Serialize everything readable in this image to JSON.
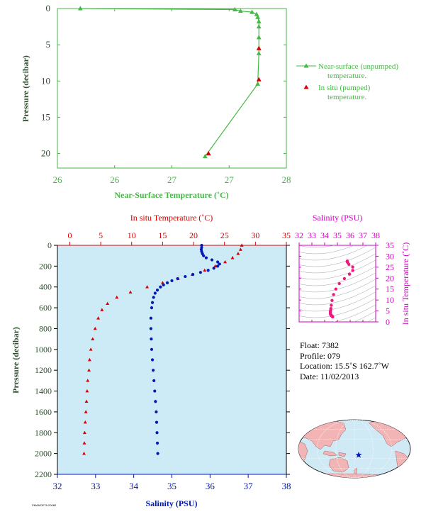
{
  "colors": {
    "green": "#46b846",
    "red": "#d80000",
    "blue": "#0018b8",
    "magenta": "#d000c0",
    "pink": "#f01880",
    "dark_green": "#2e4f2e",
    "plot_bg": "#cdebf6",
    "land": "#f2b4b4",
    "ocean": "#cfe9f5"
  },
  "chart_data": [
    {
      "id": "near-surface",
      "type": "line",
      "xlabel": "Near-Surface Temperature (˚C)",
      "ylabel": "Pressure (decibar)",
      "xlim": [
        26,
        28
      ],
      "ylim": [
        0,
        22
      ],
      "y_reversed": true,
      "x_ticks": [
        "26",
        "26",
        "27",
        "27",
        "28"
      ],
      "x_tick_values": [
        26,
        26.5,
        27,
        27.5,
        28
      ],
      "y_ticks": [
        "0",
        "5",
        "10",
        "15",
        "20"
      ],
      "y_tick_values": [
        0,
        5,
        10,
        15,
        20
      ],
      "series": [
        {
          "name": "Near-surface (unpumped) temperature.",
          "legend_lines": [
            "Near-surface (unpumped)",
            "temperature."
          ],
          "marker": "triangle",
          "x": [
            26.2,
            27.55,
            27.6,
            27.7,
            27.74,
            27.75,
            27.76,
            27.76,
            27.76,
            27.76,
            27.76,
            27.75,
            27.29
          ],
          "y": [
            0.0,
            0.15,
            0.35,
            0.5,
            0.8,
            1.2,
            1.8,
            2.5,
            4.0,
            5.5,
            6.2,
            10.4,
            20.4
          ]
        },
        {
          "name": "In situ (pumped) temperature.",
          "legend_lines": [
            "In situ (pumped)",
            "temperature."
          ],
          "marker": "triangle",
          "x": [
            27.76,
            27.76,
            27.32
          ],
          "y": [
            5.5,
            9.8,
            20.0
          ]
        }
      ]
    },
    {
      "id": "profile",
      "type": "scatter",
      "top_axis_label": "In situ Temperature (˚C)",
      "bottom_axis_label": "Salinity (PSU)",
      "ylabel": "Pressure (decibar)",
      "temp_lim": [
        -2,
        35
      ],
      "sal_lim": [
        32,
        38
      ],
      "ylim": [
        0,
        2200
      ],
      "y_reversed": true,
      "temp_ticks": [
        "0",
        "5",
        "10",
        "15",
        "20",
        "25",
        "30",
        "35"
      ],
      "temp_tick_values": [
        0,
        5,
        10,
        15,
        20,
        25,
        30,
        35
      ],
      "sal_ticks": [
        "32",
        "33",
        "34",
        "35",
        "36",
        "37",
        "38"
      ],
      "sal_tick_values": [
        32,
        33,
        34,
        35,
        36,
        37,
        38
      ],
      "y_ticks": [
        "0",
        "200",
        "400",
        "600",
        "800",
        "1000",
        "1200",
        "1400",
        "1600",
        "1800",
        "2000",
        "2200"
      ],
      "y_tick_values": [
        0,
        200,
        400,
        600,
        800,
        1000,
        1200,
        1400,
        1600,
        1800,
        2000,
        2200
      ],
      "series": [
        {
          "name": "temperature",
          "marker": "triangle",
          "pressure": [
            0,
            40,
            80,
            120,
            160,
            200,
            240,
            280,
            320,
            360,
            400,
            450,
            500,
            560,
            620,
            700,
            800,
            900,
            1000,
            1100,
            1200,
            1300,
            1400,
            1500,
            1600,
            1700,
            1800,
            1900,
            2000
          ],
          "temperature": [
            27.8,
            27.6,
            27.2,
            26.3,
            25.1,
            23.5,
            21.8,
            19.8,
            17.5,
            15.0,
            12.5,
            9.8,
            7.6,
            6.1,
            5.2,
            4.6,
            4.1,
            3.7,
            3.4,
            3.2,
            3.1,
            2.9,
            2.8,
            2.7,
            2.6,
            2.5,
            2.4,
            2.35,
            2.3
          ]
        },
        {
          "name": "salinity",
          "marker": "circle",
          "pressure": [
            0,
            20,
            40,
            60,
            80,
            100,
            120,
            140,
            160,
            180,
            200,
            220,
            240,
            260,
            280,
            300,
            320,
            340,
            360,
            380,
            400,
            430,
            460,
            500,
            550,
            600,
            700,
            800,
            900,
            1000,
            1100,
            1200,
            1300,
            1400,
            1500,
            1600,
            1700,
            1800,
            1900,
            2000
          ],
          "salinity": [
            35.78,
            35.78,
            35.77,
            35.78,
            35.8,
            35.83,
            35.9,
            36.05,
            36.2,
            36.25,
            36.2,
            36.1,
            35.95,
            35.75,
            35.55,
            35.35,
            35.15,
            35.0,
            34.88,
            34.78,
            34.7,
            34.62,
            34.56,
            34.52,
            34.49,
            34.47,
            34.45,
            34.45,
            34.46,
            34.47,
            34.49,
            34.51,
            34.53,
            34.55,
            34.57,
            34.59,
            34.6,
            34.61,
            34.62,
            34.63
          ]
        }
      ]
    },
    {
      "id": "ts-diagram",
      "type": "scatter",
      "top_axis_label": "Salinity (PSU)",
      "right_axis_label": "In situ Temperature (˚C)",
      "xlim": [
        32,
        38
      ],
      "ylim": [
        0,
        35
      ],
      "x_ticks": [
        "32",
        "33",
        "34",
        "35",
        "36",
        "37",
        "38"
      ],
      "x_tick_values": [
        32,
        33,
        34,
        35,
        36,
        37,
        38
      ],
      "y_ticks": [
        "0",
        "5",
        "10",
        "15",
        "20",
        "25",
        "30",
        "35"
      ],
      "y_tick_values": [
        0,
        5,
        10,
        15,
        20,
        25,
        30,
        35
      ]
    }
  ],
  "info": {
    "float": "Float:  7382",
    "profile": "Profile:  079",
    "location": "Location:  15.5˚S  162.7˚W",
    "date": "Date:  11/02/2013"
  },
  "footer": "PMANOETA 20080"
}
